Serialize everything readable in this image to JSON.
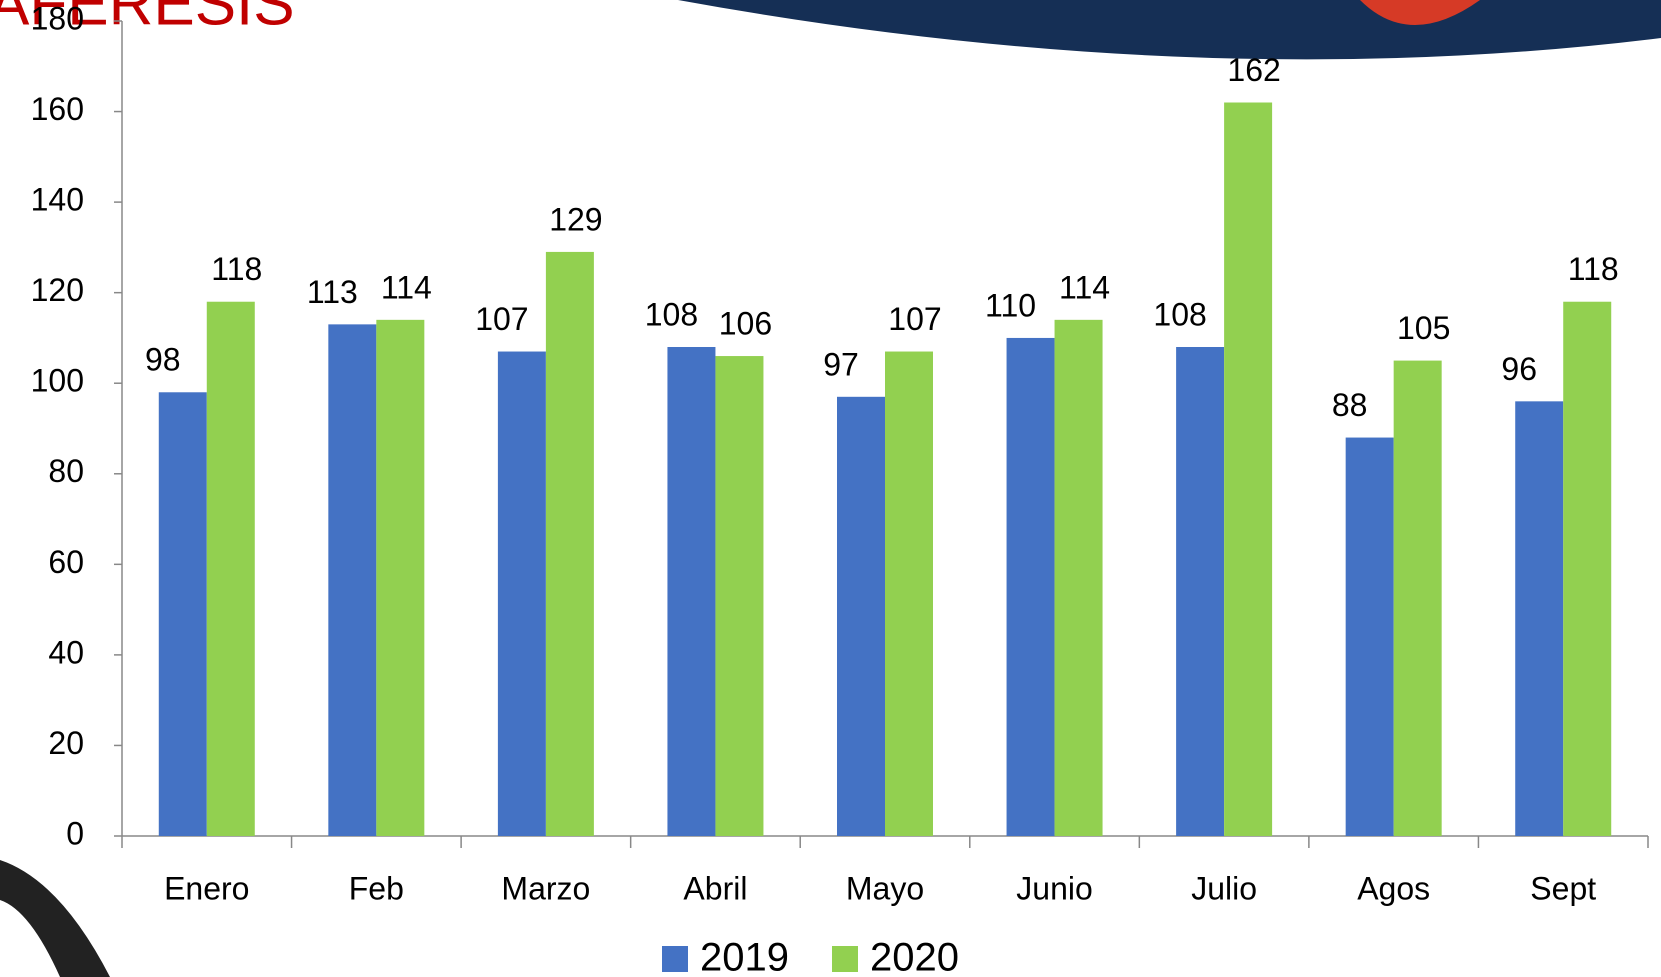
{
  "chart_data": {
    "type": "bar",
    "title": "AFERESIS",
    "categories": [
      "Enero",
      "Feb",
      "Marzo",
      "Abril",
      "Mayo",
      "Junio",
      "Julio",
      "Agos",
      "Sept"
    ],
    "series": [
      {
        "name": "2019",
        "color": "#4472c4",
        "values": [
          98,
          113,
          107,
          108,
          97,
          110,
          108,
          88,
          96
        ]
      },
      {
        "name": "2020",
        "color": "#92d050",
        "values": [
          118,
          114,
          129,
          106,
          107,
          114,
          162,
          105,
          118
        ]
      }
    ],
    "ylim": [
      0,
      180
    ],
    "yticks": [
      0,
      20,
      40,
      60,
      80,
      100,
      120,
      140,
      160,
      180
    ],
    "grid": false,
    "legend": "bottom"
  }
}
